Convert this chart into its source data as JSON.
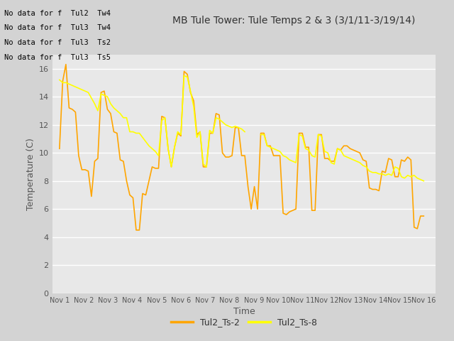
{
  "title": "MB Tule Tower: Tule Temps 2 & 3 (3/1/11-3/19/14)",
  "xlabel": "Time",
  "ylabel": "Temperature (C)",
  "ylim": [
    0,
    17
  ],
  "yticks": [
    0,
    2,
    4,
    6,
    8,
    10,
    12,
    14,
    16
  ],
  "no_data_labels": [
    "No data for f  Tul2  Tw4",
    "No data for f  Tul3  Tw4",
    "No data for f  Tul3  Ts2",
    "No data for f  Tul3  Ts5"
  ],
  "legend_entries": [
    "Tul2_Ts-2",
    "Tul2_Ts-8"
  ],
  "line1_color": "#FFA500",
  "line2_color": "#FFFF00",
  "figure_bg": "#D3D3D3",
  "plot_bg": "#E8E8E8",
  "xtick_labels": [
    "Nov 1",
    "Nov 2",
    "Nov 3",
    "Nov 4",
    "Nov 5",
    "Nov 6",
    "Nov 7",
    "Nov 8",
    "Nov 9",
    "Nov 10",
    "Nov 11",
    "Nov 12",
    "Nov 13",
    "Nov 14",
    "Nov 15",
    "Nov 16"
  ],
  "series1": [
    10.3,
    15.1,
    16.3,
    13.2,
    13.1,
    12.9,
    9.8,
    8.8,
    8.8,
    8.7,
    6.9,
    9.4,
    9.6,
    14.3,
    14.4,
    13.1,
    12.8,
    11.5,
    11.4,
    9.5,
    9.4,
    8.0,
    7.0,
    6.8,
    4.5,
    4.5,
    7.1,
    7.0,
    8.0,
    9.0,
    8.9,
    8.9,
    12.6,
    12.5,
    10.3,
    9.0,
    10.4,
    11.4,
    11.2,
    15.8,
    15.6,
    14.3,
    13.7,
    11.3,
    11.5,
    9.0,
    9.0,
    11.4,
    11.4,
    12.8,
    12.7,
    10.0,
    9.7,
    9.7,
    9.8,
    11.8,
    11.8,
    9.8,
    9.8,
    7.6,
    6.0,
    7.6,
    6.0,
    11.4,
    11.4,
    10.5,
    10.5,
    9.8,
    9.8,
    9.8,
    5.7,
    5.6,
    5.8,
    5.9,
    6.0,
    11.4,
    11.4,
    10.4,
    10.4,
    5.9,
    5.9,
    11.3,
    11.3,
    9.6,
    9.6,
    9.4,
    9.4,
    10.3,
    10.2,
    10.5,
    10.5,
    10.3,
    10.2,
    10.1,
    10.0,
    9.5,
    9.4,
    7.5,
    7.4,
    7.4,
    7.3,
    8.7,
    8.6,
    9.6,
    9.5,
    8.3,
    8.3,
    9.5,
    9.4,
    9.7,
    9.5,
    4.7,
    4.6,
    5.5,
    5.5
  ],
  "series2": [
    15.2,
    15.0,
    15.0,
    14.9,
    14.8,
    14.7,
    14.6,
    14.5,
    14.4,
    14.3,
    13.9,
    13.5,
    13.0,
    14.2,
    14.1,
    14.0,
    13.5,
    13.2,
    13.0,
    12.8,
    12.5,
    12.5,
    11.5,
    11.5,
    11.4,
    11.4,
    11.1,
    10.8,
    10.5,
    10.3,
    10.1,
    9.8,
    12.3,
    12.5,
    10.3,
    9.0,
    10.4,
    11.5,
    11.3,
    15.5,
    15.4,
    14.4,
    13.3,
    11.1,
    11.5,
    9.2,
    9.0,
    11.6,
    11.4,
    12.5,
    12.4,
    12.2,
    12.0,
    11.9,
    11.8,
    11.9,
    11.8,
    11.7,
    11.5,
    null,
    null,
    null,
    null,
    11.3,
    11.3,
    10.5,
    10.4,
    10.3,
    10.2,
    10.1,
    9.8,
    9.7,
    9.5,
    9.4,
    9.3,
    11.3,
    11.2,
    10.3,
    10.2,
    9.8,
    9.7,
    11.3,
    11.2,
    10.1,
    10.0,
    9.3,
    9.2,
    10.3,
    10.2,
    9.8,
    9.7,
    9.6,
    9.5,
    9.4,
    9.3,
    9.1,
    9.0,
    8.7,
    8.6,
    8.6,
    8.5,
    8.5,
    8.4,
    8.5,
    8.4,
    9.0,
    8.9,
    8.3,
    8.2,
    8.4,
    8.3,
    8.4,
    8.2,
    8.1,
    8.0
  ]
}
